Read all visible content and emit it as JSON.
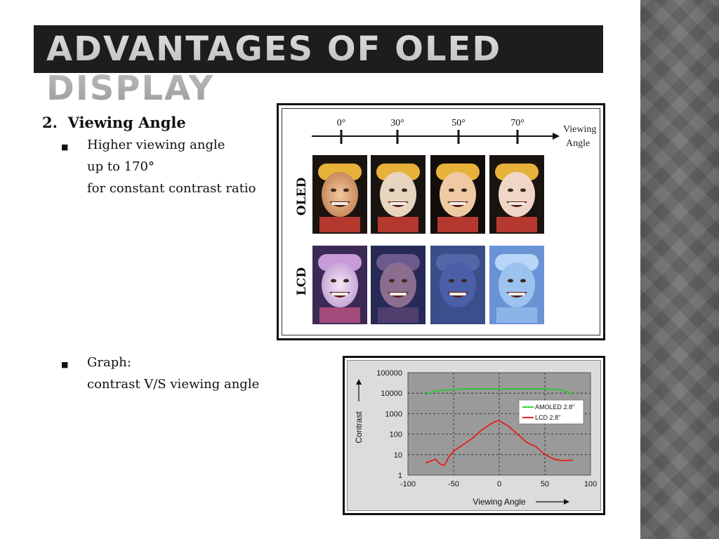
{
  "slide": {
    "title": "Advantages of OLED Display",
    "section": {
      "number": "2.",
      "heading": "Viewing Angle",
      "bullet1": {
        "line1": "Higher viewing angle",
        "line2": "up to 170°",
        "line3": "for constant contrast ratio"
      },
      "bullet2": {
        "line1": "Graph:",
        "line2": "contrast V/S viewing angle"
      }
    },
    "colors": {
      "title_bar": "#1d1d1d",
      "side_strip": "#5a5a5a"
    }
  },
  "figure_photos": {
    "angles": [
      "0°",
      "30°",
      "50°",
      "70°"
    ],
    "axis_label_line1": "Viewing",
    "axis_label_line2": "Angle",
    "row_labels": [
      "OLED",
      "LCD"
    ]
  },
  "chart_data": {
    "type": "line",
    "xlabel": "Viewing Angle",
    "ylabel": "Contrast",
    "xlim": [
      -100,
      100
    ],
    "ylim": [
      1,
      100000
    ],
    "yscale": "log",
    "x_ticks": [
      "-100",
      "-50",
      "0",
      "50",
      "100"
    ],
    "y_ticks": [
      "100000",
      "10000",
      "1000",
      "100",
      "10",
      "1"
    ],
    "grid": true,
    "legend_position": "right",
    "series": [
      {
        "name": "AMOLED 2.8\"",
        "color": "#22cc22",
        "x": [
          -80,
          -70,
          -60,
          -50,
          -40,
          -30,
          -20,
          -10,
          0,
          10,
          20,
          30,
          40,
          50,
          60,
          70,
          80
        ],
        "values": [
          9000,
          13000,
          14000,
          15000,
          16000,
          16000,
          16000,
          16000,
          16000,
          16000,
          16000,
          16000,
          16000,
          16000,
          15000,
          14000,
          9000
        ]
      },
      {
        "name": "LCD 2.8\"",
        "color": "#ee1111",
        "x": [
          -80,
          -70,
          -65,
          -60,
          -55,
          -50,
          -40,
          -30,
          -20,
          -10,
          -5,
          0,
          10,
          20,
          30,
          40,
          50,
          60,
          70,
          80
        ],
        "values": [
          4,
          6,
          3.5,
          3,
          8,
          15,
          30,
          60,
          150,
          300,
          400,
          450,
          250,
          100,
          40,
          25,
          10,
          6,
          5,
          5.5
        ]
      }
    ]
  }
}
